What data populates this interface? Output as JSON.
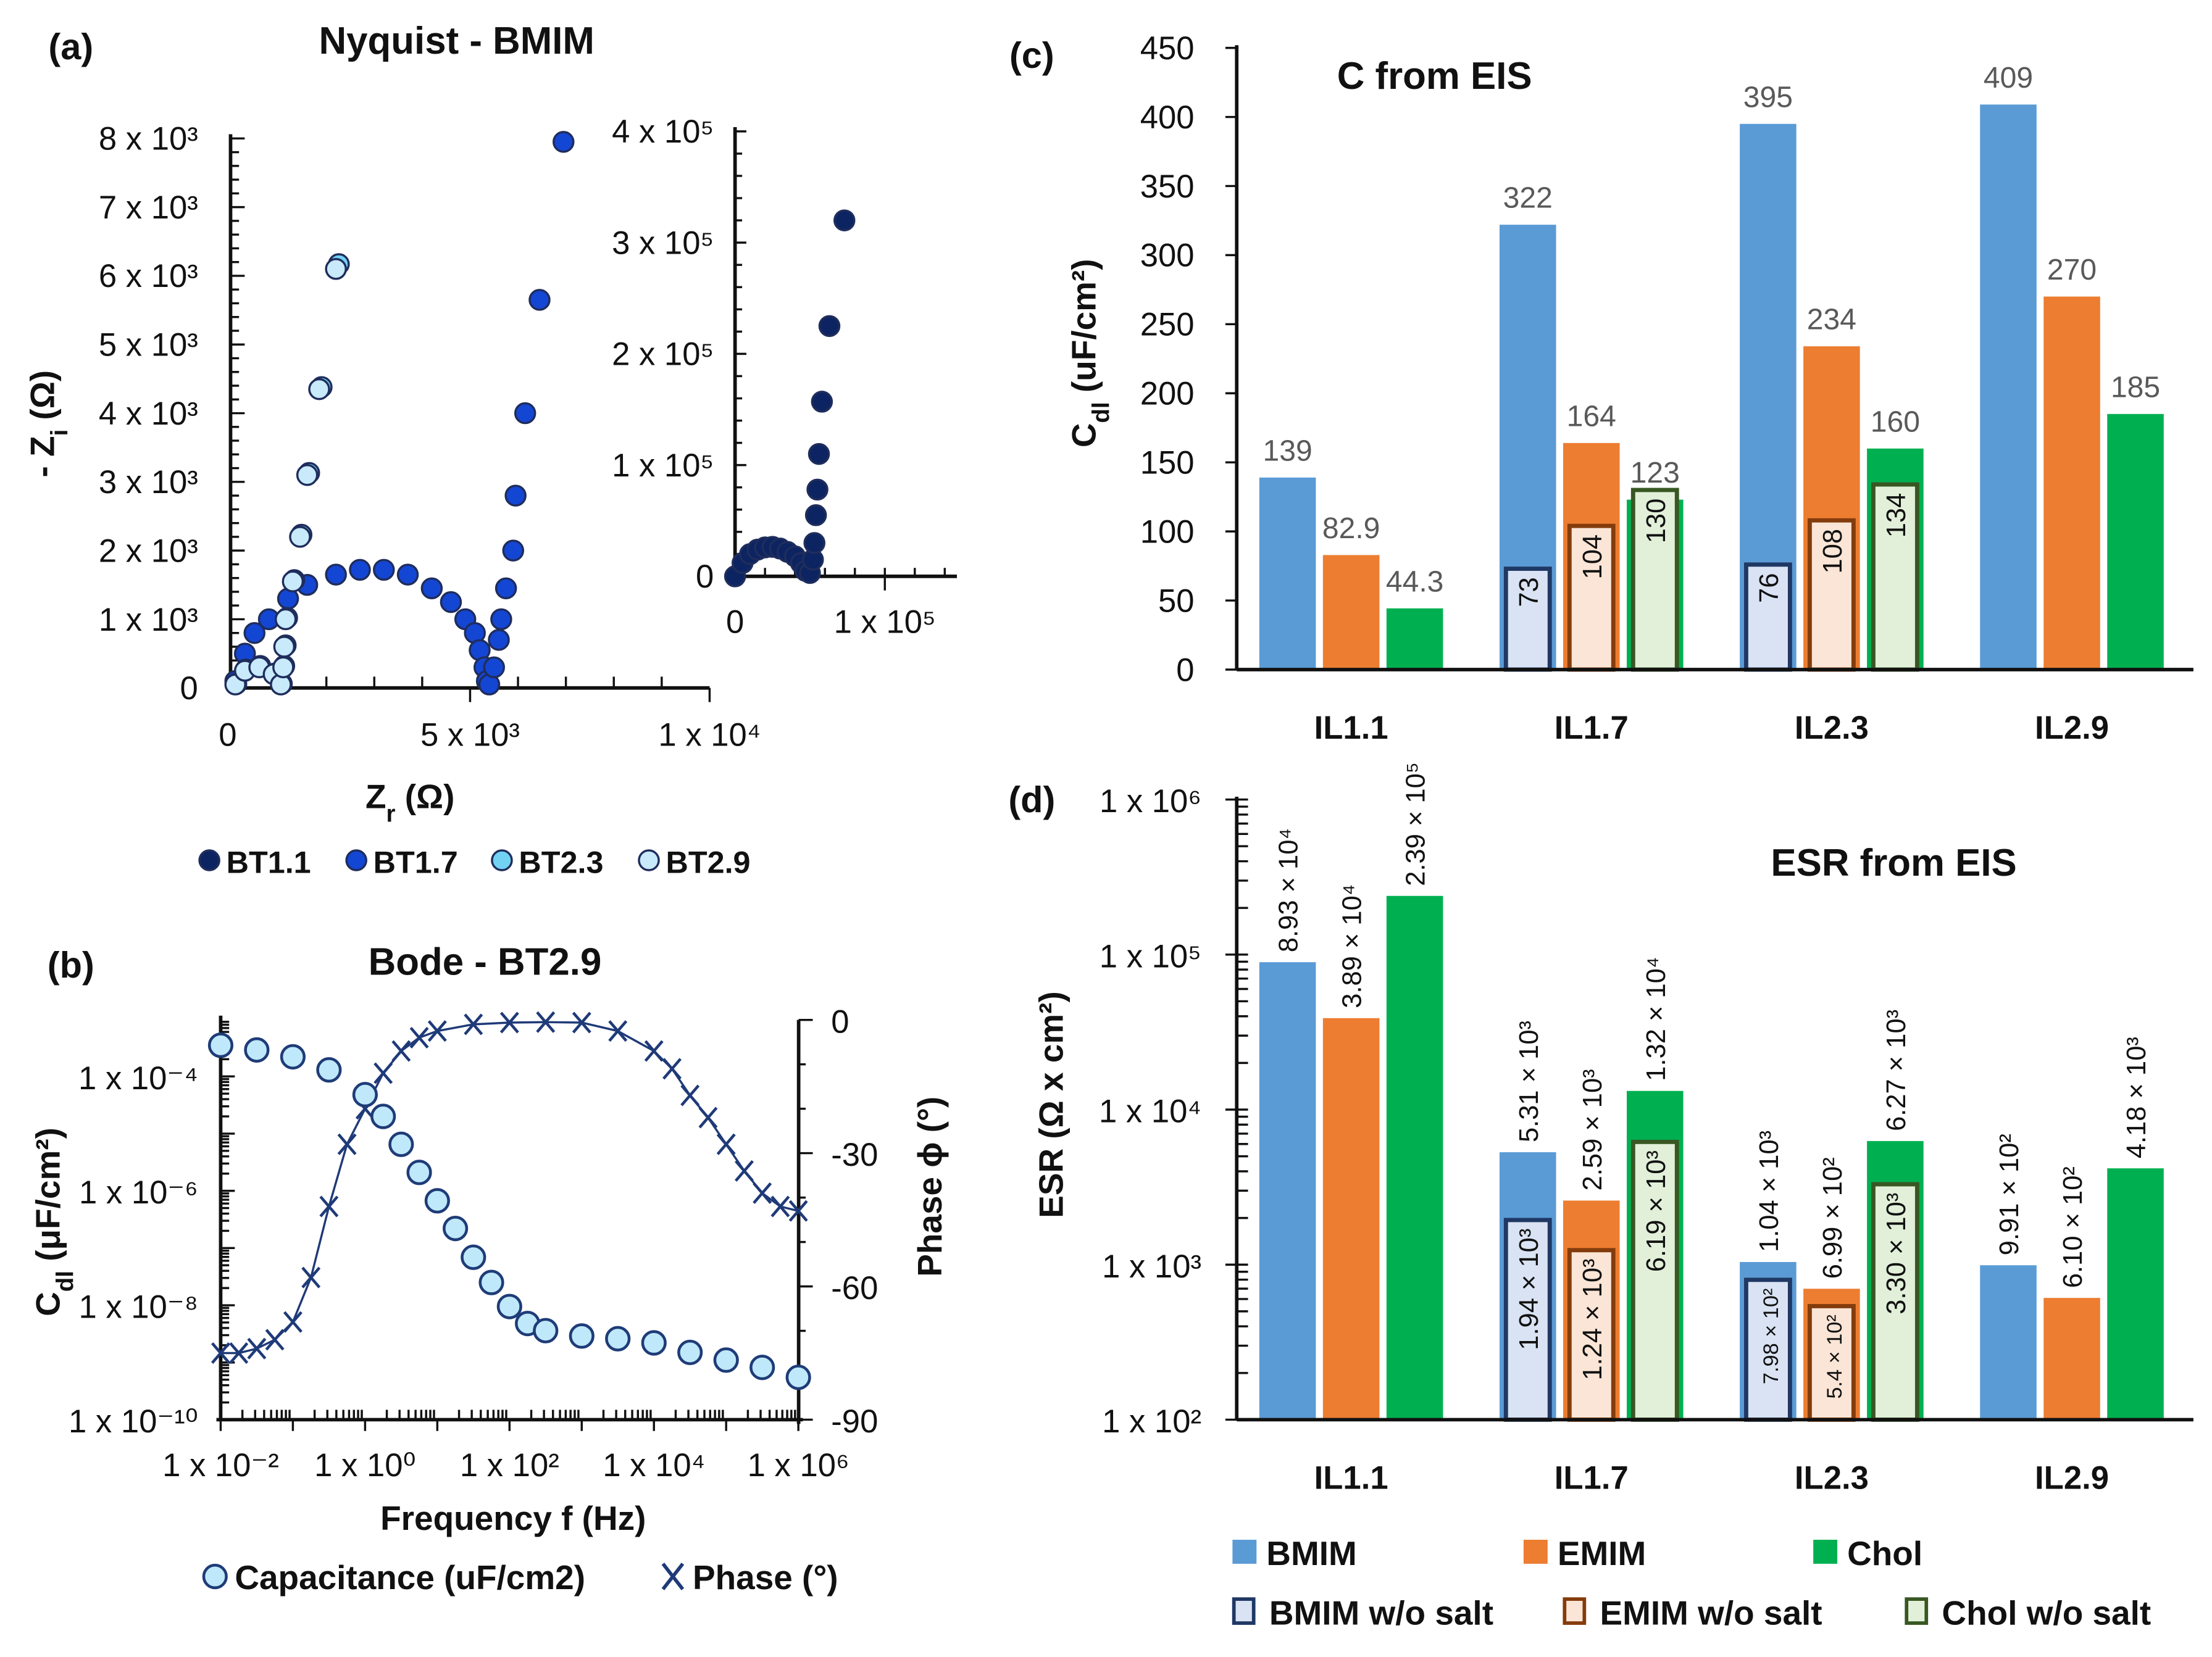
{
  "panel_labels": [
    "(a)",
    "(b)",
    "(c)",
    "(d)"
  ],
  "chart_data": [
    {
      "type": "scatter",
      "title": "Nyquist - BMIM",
      "xlabel": {
        "main": "Z",
        "sub": "r",
        "rest": " (Ω)"
      },
      "ylabel": {
        "main": "- Z",
        "sub": "i",
        "rest": " (Ω)"
      },
      "xlim": [
        0,
        10000
      ],
      "ylim": [
        0,
        8000
      ],
      "xticks": [
        {
          "v": 0,
          "label": "0"
        },
        {
          "v": 5000,
          "label": "5 x 10³"
        },
        {
          "v": 10000,
          "label": "1 x 10⁴"
        }
      ],
      "yticks": [
        {
          "v": 0,
          "label": "0"
        },
        {
          "v": 1000,
          "label": "1 x 10³"
        },
        {
          "v": 2000,
          "label": "2 x 10³"
        },
        {
          "v": 3000,
          "label": "3 x 10³"
        },
        {
          "v": 4000,
          "label": "4 x 10³"
        },
        {
          "v": 5000,
          "label": "5 x 10³"
        },
        {
          "v": 6000,
          "label": "6 x 10³"
        },
        {
          "v": 7000,
          "label": "7 x 10³"
        },
        {
          "v": 8000,
          "label": "8 x 10³"
        }
      ],
      "legend_position": "bottom",
      "series": [
        {
          "name": "BT1.1",
          "color": "#0c2461",
          "points": []
        },
        {
          "name": "BT1.7",
          "color": "#1446d4",
          "points": [
            [
              100,
              100
            ],
            [
              300,
              500
            ],
            [
              500,
              800
            ],
            [
              800,
              1000
            ],
            [
              1200,
              1300
            ],
            [
              1600,
              1500
            ],
            [
              2200,
              1650
            ],
            [
              2700,
              1720
            ],
            [
              3200,
              1720
            ],
            [
              3700,
              1650
            ],
            [
              4200,
              1450
            ],
            [
              4600,
              1250
            ],
            [
              4900,
              1000
            ],
            [
              5100,
              800
            ],
            [
              5200,
              550
            ],
            [
              5300,
              300
            ],
            [
              5350,
              100
            ],
            [
              5400,
              50
            ],
            [
              5500,
              300
            ],
            [
              5600,
              700
            ],
            [
              5650,
              1000
            ],
            [
              5750,
              1450
            ],
            [
              5900,
              2000
            ],
            [
              5950,
              2800
            ],
            [
              6150,
              4000
            ],
            [
              6450,
              5650
            ],
            [
              6950,
              7950
            ]
          ]
        },
        {
          "name": "BT2.3",
          "color": "#72d2f4",
          "points": [
            [
              120,
              60
            ],
            [
              320,
              270
            ],
            [
              620,
              320
            ],
            [
              920,
              210
            ],
            [
              1070,
              60
            ],
            [
              1120,
              320
            ],
            [
              1150,
              620
            ],
            [
              1180,
              1020
            ],
            [
              1330,
              1570
            ],
            [
              1480,
              2230
            ],
            [
              1640,
              3130
            ],
            [
              1900,
              4380
            ],
            [
              2260,
              6170
            ]
          ]
        },
        {
          "name": "BT2.9",
          "color": "#c8eafb",
          "points": [
            [
              100,
              50
            ],
            [
              300,
              250
            ],
            [
              600,
              300
            ],
            [
              900,
              200
            ],
            [
              1050,
              50
            ],
            [
              1100,
              300
            ],
            [
              1120,
              600
            ],
            [
              1150,
              1000
            ],
            [
              1300,
              1550
            ],
            [
              1450,
              2200
            ],
            [
              1600,
              3100
            ],
            [
              1850,
              4350
            ],
            [
              2200,
              6100
            ]
          ]
        }
      ]
    },
    {
      "type": "scatter",
      "xlim": [
        0,
        150000
      ],
      "ylim": [
        0,
        400000
      ],
      "xticks": [
        {
          "v": 0,
          "label": "0"
        },
        {
          "v": 100000,
          "label": "1 x 10⁵"
        }
      ],
      "yticks": [
        {
          "v": 0,
          "label": "0"
        },
        {
          "v": 100000,
          "label": "1 x 10⁵"
        },
        {
          "v": 200000,
          "label": "2 x 10⁵"
        },
        {
          "v": 300000,
          "label": "3 x 10⁵"
        },
        {
          "v": 400000,
          "label": "4 x 10⁵"
        }
      ],
      "series": [
        {
          "name": "BT1.1",
          "color": "#0c2461",
          "points": [
            [
              0,
              0
            ],
            [
              5000,
              12000
            ],
            [
              10000,
              20000
            ],
            [
              15000,
              24000
            ],
            [
              20000,
              26000
            ],
            [
              25000,
              26500
            ],
            [
              30000,
              25000
            ],
            [
              35000,
              22000
            ],
            [
              40000,
              18000
            ],
            [
              44000,
              12000
            ],
            [
              47000,
              5000
            ],
            [
              50000,
              3000
            ],
            [
              52000,
              15000
            ],
            [
              53000,
              30000
            ],
            [
              54000,
              55000
            ],
            [
              55000,
              78000
            ],
            [
              56000,
              110000
            ],
            [
              58000,
              157000
            ],
            [
              63000,
              225000
            ],
            [
              73000,
              320000
            ]
          ]
        }
      ]
    },
    {
      "type": "line",
      "title": "Bode - BT2.9",
      "xlabel": "Frequency f (Hz)",
      "ylabel": {
        "main": "C",
        "sub": "dl",
        "rest": " (μF/cm²)"
      },
      "y2label": "Phase ϕ (°)",
      "xscale": "log",
      "yscale": "log",
      "xlim": [
        0.01,
        1000000
      ],
      "ylim": [
        1e-10,
        0.001
      ],
      "y2lim": [
        -90,
        0
      ],
      "xticks": [
        {
          "v": 0.01,
          "label": "1 x 10⁻²"
        },
        {
          "v": 1,
          "label": "1 x 10⁰"
        },
        {
          "v": 100,
          "label": "1 x 10²"
        },
        {
          "v": 10000,
          "label": "1 x 10⁴"
        },
        {
          "v": 1000000,
          "label": "1 x 10⁶"
        }
      ],
      "yticks": [
        {
          "v": 1e-10,
          "label": "1 x 10⁻¹⁰"
        },
        {
          "v": 1e-08,
          "label": "1 x 10⁻⁸"
        },
        {
          "v": 1e-06,
          "label": "1 x 10⁻⁶"
        },
        {
          "v": 0.0001,
          "label": "1 x 10⁻⁴"
        }
      ],
      "y2ticks": [
        {
          "v": 0,
          "label": "0"
        },
        {
          "v": -30,
          "label": "-30"
        },
        {
          "v": -60,
          "label": "-60"
        },
        {
          "v": -90,
          "label": "-90"
        }
      ],
      "legend_position": "bottom",
      "series": [
        {
          "name": "Capacitance (uF/cm2)",
          "axis": "left",
          "color": "#bfe8fa",
          "edge": "#1f3c78",
          "x": [
            0.01,
            0.0316,
            0.1,
            0.316,
            1,
            1.78,
            3.16,
            5.62,
            10,
            17.8,
            31.6,
            56.2,
            100,
            178,
            316,
            1000,
            3160,
            10000,
            31600,
            100000,
            316000,
            1000000
          ],
          "y": [
            0.00035,
            0.00029,
            0.00022,
            0.00013,
            4.8e-05,
            2e-05,
            6.5e-06,
            2.1e-06,
            6.7e-07,
            2.2e-07,
            6.9e-08,
            2.5e-08,
            9.5e-09,
            4.8e-09,
            3.6e-09,
            2.9e-09,
            2.6e-09,
            2.2e-09,
            1.5e-09,
            1.1e-09,
            8.2e-10,
            5.5e-10
          ]
        },
        {
          "name": "Phase (°)",
          "axis": "right",
          "color": "#1f3a78",
          "x": [
            0.01,
            0.0178,
            0.0316,
            0.0562,
            0.1,
            0.178,
            0.316,
            0.562,
            1,
            1.78,
            3.16,
            5.62,
            10,
            31.6,
            100,
            316,
            1000,
            3160,
            10000,
            17800,
            31600,
            56200,
            100000,
            178000,
            316000,
            562000,
            1000000
          ],
          "y": [
            -75,
            -75,
            -74,
            -72,
            -68,
            -58,
            -42,
            -28,
            -20,
            -12,
            -7,
            -4,
            -2.5,
            -1,
            -0.6,
            -0.5,
            -0.6,
            -2.5,
            -7,
            -11,
            -17,
            -22,
            -28,
            -34,
            -39,
            -42,
            -43
          ]
        }
      ]
    },
    {
      "type": "bar",
      "title": "C from EIS",
      "ylabel": {
        "main": "C",
        "sub": "dl",
        "rest": " (uF/cm²)"
      },
      "categories": [
        "IL1.1",
        "IL1.7",
        "IL2.3",
        "IL2.9"
      ],
      "ylim": [
        0,
        450
      ],
      "yticks": [
        {
          "v": 0,
          "label": "0"
        },
        {
          "v": 50,
          "label": "50"
        },
        {
          "v": 100,
          "label": "100"
        },
        {
          "v": 150,
          "label": "150"
        },
        {
          "v": 200,
          "label": "200"
        },
        {
          "v": 250,
          "label": "250"
        },
        {
          "v": 300,
          "label": "300"
        },
        {
          "v": 350,
          "label": "350"
        },
        {
          "v": 400,
          "label": "400"
        },
        {
          "v": 450,
          "label": "450"
        }
      ],
      "series": [
        {
          "name": "BMIM",
          "color": "#5b9bd5",
          "values": [
            139,
            322,
            395,
            409
          ],
          "labels": [
            "139",
            "322",
            "395",
            "409"
          ]
        },
        {
          "name": "EMIM",
          "color": "#ed7d31",
          "values": [
            82.9,
            164,
            234,
            270
          ],
          "labels": [
            "82.9",
            "164",
            "234",
            "270"
          ]
        },
        {
          "name": "Chol",
          "color": "#00b050",
          "values": [
            44.3,
            123,
            160,
            185
          ],
          "labels": [
            "44.3",
            "123",
            "160",
            "185"
          ]
        }
      ],
      "series_wo_salt": [
        {
          "name": "BMIM w/o salt",
          "fill": "#dae3f3",
          "stroke": "#1f3864",
          "values": [
            null,
            73,
            76,
            null
          ],
          "labels": [
            null,
            "73",
            "76",
            null
          ]
        },
        {
          "name": "EMIM w/o salt",
          "fill": "#fbe5d6",
          "stroke": "#843c0c",
          "values": [
            null,
            104,
            108,
            null
          ],
          "labels": [
            null,
            "104",
            "108",
            null
          ]
        },
        {
          "name": "Chol w/o salt",
          "fill": "#e2f0d9",
          "stroke": "#385723",
          "values": [
            null,
            130,
            134,
            null
          ],
          "labels": [
            null,
            "130",
            "134",
            null
          ]
        }
      ]
    },
    {
      "type": "bar",
      "title": "ESR from EIS",
      "ylabel": "ESR (Ω x cm²)",
      "yscale": "log",
      "categories": [
        "IL1.1",
        "IL1.7",
        "IL2.3",
        "IL2.9"
      ],
      "ylim": [
        100,
        1000000
      ],
      "yticks": [
        {
          "v": 100,
          "label": "1 x 10²"
        },
        {
          "v": 1000,
          "label": "1 x 10³"
        },
        {
          "v": 10000,
          "label": "1 x 10⁴"
        },
        {
          "v": 100000,
          "label": "1 x 10⁵"
        },
        {
          "v": 1000000,
          "label": "1 x 10⁶"
        }
      ],
      "legend_position": "bottom",
      "series": [
        {
          "name": "BMIM",
          "color": "#5b9bd5",
          "values": [
            89300,
            5310,
            1040,
            991
          ],
          "labels": [
            "8.93 × 10⁴",
            "5.31 × 10³",
            "1.04 × 10³",
            "9.91 × 10²"
          ]
        },
        {
          "name": "EMIM",
          "color": "#ed7d31",
          "values": [
            38900,
            2590,
            699,
            610
          ],
          "labels": [
            "3.89 × 10⁴",
            "2.59 × 10³",
            "6.99 × 10²",
            "6.10 × 10²"
          ]
        },
        {
          "name": "Chol",
          "color": "#00b050",
          "values": [
            239000,
            13200,
            6270,
            4180
          ],
          "labels": [
            "2.39 × 10⁵",
            "1.32 × 10⁴",
            "6.27 × 10³",
            "4.18 × 10³"
          ]
        }
      ],
      "series_wo_salt": [
        {
          "name": "BMIM w/o salt",
          "fill": "#dae3f3",
          "stroke": "#1f3864",
          "values": [
            null,
            1940,
            798,
            null
          ],
          "labels": [
            null,
            "1.94 × 10³",
            "7.98 × 10²",
            null
          ]
        },
        {
          "name": "EMIM w/o salt",
          "fill": "#fbe5d6",
          "stroke": "#843c0c",
          "values": [
            null,
            1240,
            540,
            null
          ],
          "labels": [
            null,
            "1.24 × 10³",
            "5.4 × 10²",
            null
          ]
        },
        {
          "name": "Chol w/o salt",
          "fill": "#e2f0d9",
          "stroke": "#385723",
          "values": [
            null,
            6190,
            3300,
            null
          ],
          "labels": [
            null,
            "6.19 × 10³",
            "3.30 × 10³",
            null
          ]
        }
      ]
    }
  ]
}
